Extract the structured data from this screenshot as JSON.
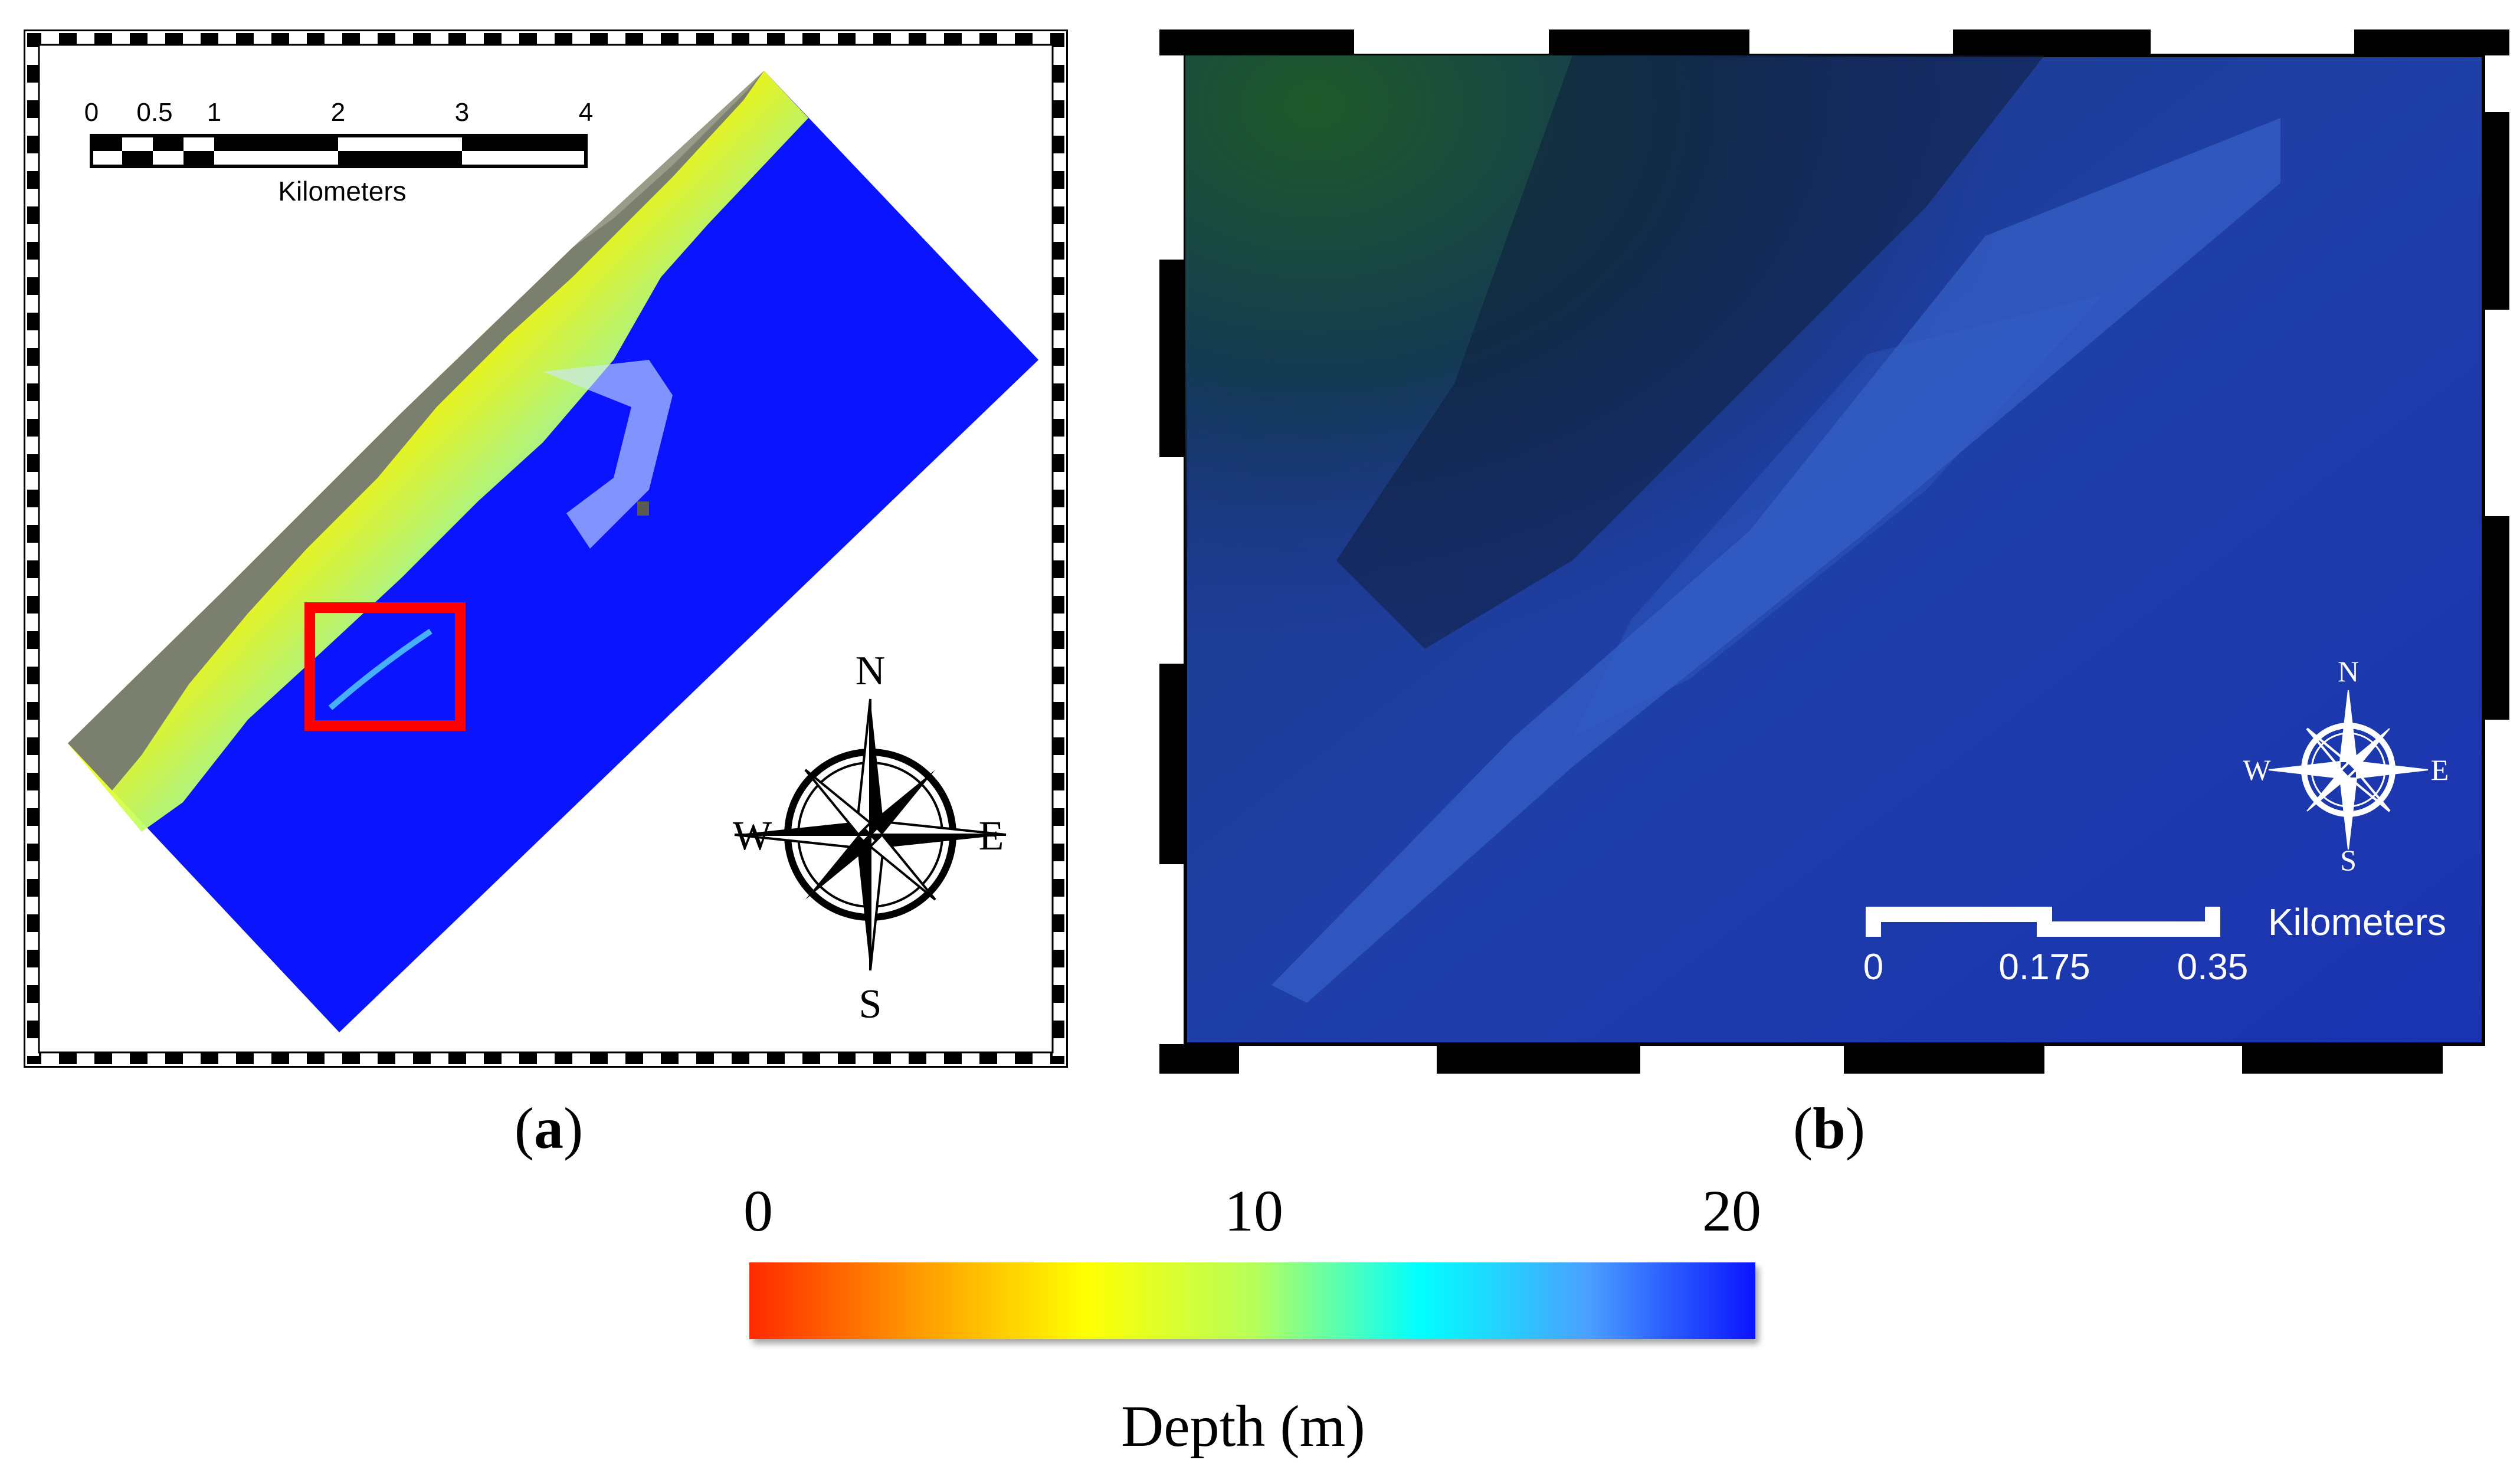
{
  "panel_a": {
    "scale_bar": {
      "ticks": [
        "0",
        "0.5",
        "1",
        "2",
        "3",
        "4"
      ],
      "unit": "Kilometers"
    },
    "compass": {
      "n": "N",
      "s": "S",
      "e": "E",
      "w": "W"
    },
    "caption_letter": "a",
    "caption_open": "(",
    "caption_close": ")"
  },
  "panel_b": {
    "scale_bar": {
      "ticks": [
        "0",
        "0.175",
        "0.35"
      ],
      "unit": "Kilometers"
    },
    "compass": {
      "n": "N",
      "s": "S",
      "e": "E",
      "w": "W"
    },
    "caption_letter": "b",
    "caption_open": "(",
    "caption_close": ")"
  },
  "colorbar": {
    "ticks": [
      "0",
      "10",
      "20"
    ],
    "label": "Depth (m)",
    "colors": [
      "#ff2a00",
      "#ff9a00",
      "#ffff00",
      "#b8ff5a",
      "#00ffff",
      "#4aa0ff",
      "#0a14ff"
    ],
    "range": [
      0,
      20
    ]
  },
  "colors": {
    "highlight_box": "#ff0000",
    "deep_water": "#0a14ff"
  }
}
